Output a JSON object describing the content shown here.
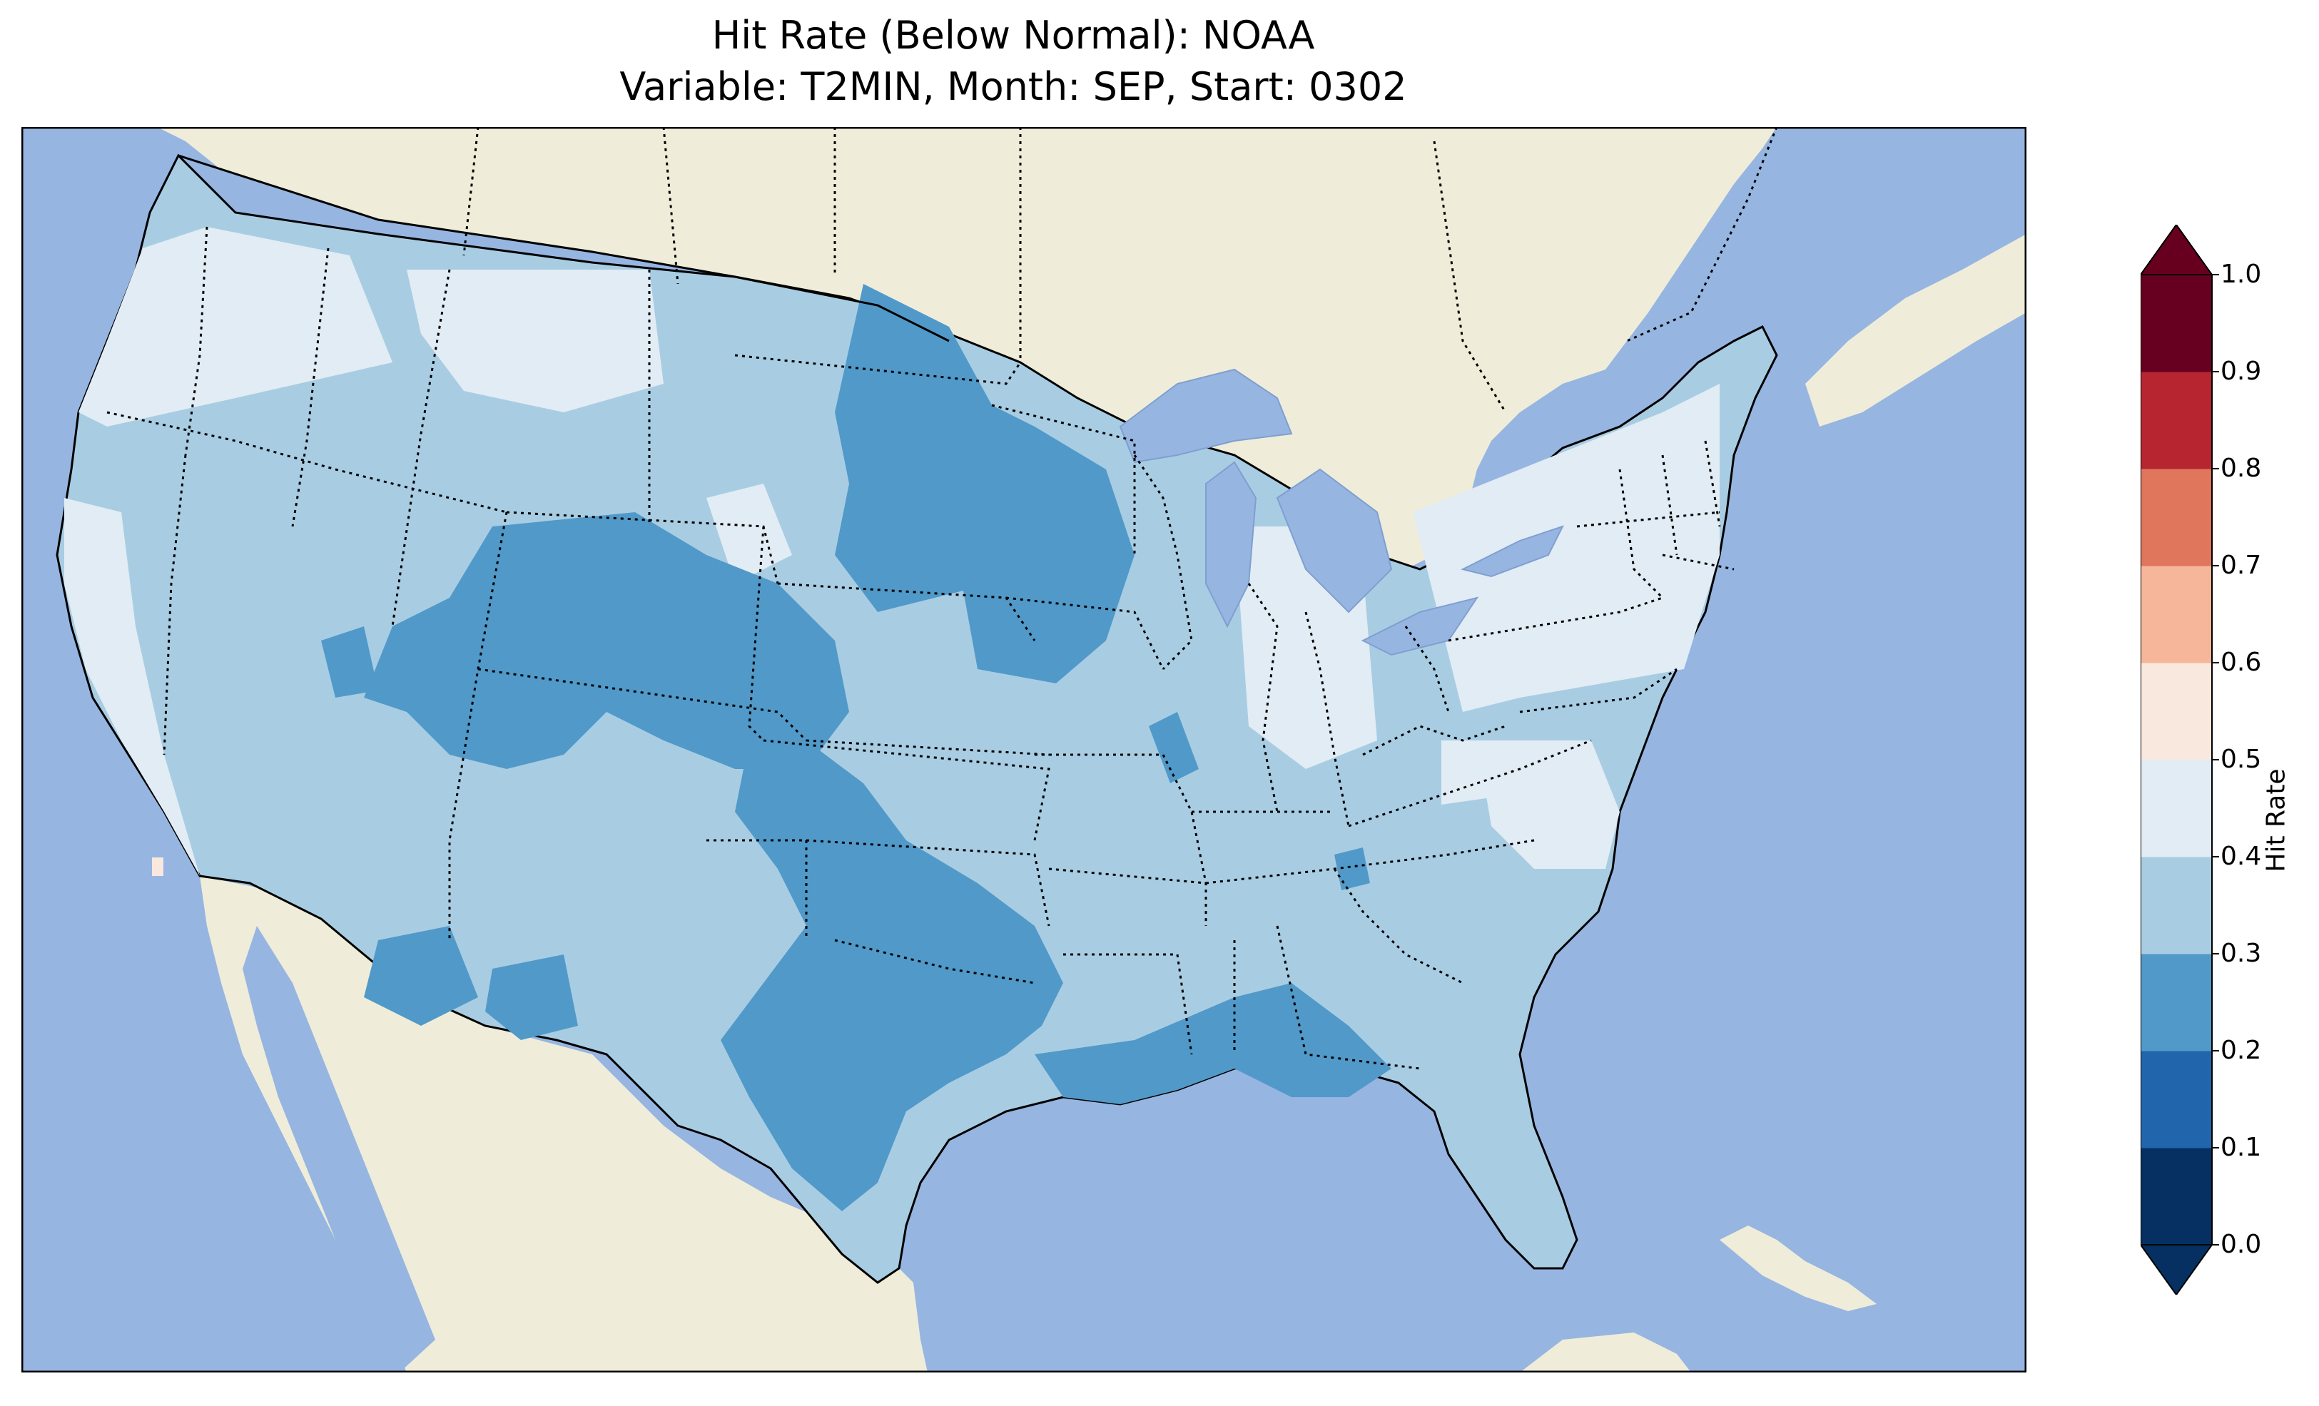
{
  "title": {
    "line1": "Hit Rate (Below Normal): NOAA",
    "line2": "Variable: T2MIN, Month: SEP, Start: 0302"
  },
  "colors": {
    "ocean": "#97b5e1",
    "land": "#efedd9",
    "scale": [
      "#053061",
      "#2166ac",
      "#4393c3",
      "#92c5de",
      "#d1e5f0",
      "#f7f7f7",
      "#fddbc7",
      "#f4a582",
      "#d6604d",
      "#b2182b",
      "#67001f"
    ],
    "under": "#053061",
    "over": "#67001f"
  },
  "colorbar": {
    "label": "Hit Rate",
    "ticks": [
      "0.0",
      "0.1",
      "0.2",
      "0.3",
      "0.4",
      "0.5",
      "0.6",
      "0.7",
      "0.8",
      "0.9",
      "1.0"
    ],
    "bins": [
      {
        "range": "0.0-0.1",
        "color": "#053061"
      },
      {
        "range": "0.1-0.2",
        "color": "#2166ac"
      },
      {
        "range": "0.2-0.3",
        "color": "#5199c9"
      },
      {
        "range": "0.3-0.4",
        "color": "#a8cde3"
      },
      {
        "range": "0.4-0.5",
        "color": "#e2ecf4"
      },
      {
        "range": "0.5-0.6",
        "color": "#f8e8de"
      },
      {
        "range": "0.6-0.7",
        "color": "#f5b699"
      },
      {
        "range": "0.7-0.8",
        "color": "#e0765c"
      },
      {
        "range": "0.8-0.9",
        "color": "#b72531"
      },
      {
        "range": "0.9-1.0",
        "color": "#670020"
      }
    ]
  },
  "map_regions": [
    {
      "name": "Pacific Northwest",
      "bin": "0.4-0.5"
    },
    {
      "name": "California coast",
      "bin": "0.4-0.5"
    },
    {
      "name": "Great Basin",
      "bin": "0.3-0.4"
    },
    {
      "name": "Colorado / Utah",
      "bin": "0.2-0.3"
    },
    {
      "name": "Northern Plains",
      "bin": "0.2-0.3"
    },
    {
      "name": "Kansas / Oklahoma",
      "bin": "0.2-0.3"
    },
    {
      "name": "Texas",
      "bin": "0.2-0.3"
    },
    {
      "name": "Gulf Coast",
      "bin": "0.2-0.3"
    },
    {
      "name": "Southwest",
      "bin": "0.3-0.4"
    },
    {
      "name": "Midwest",
      "bin": "0.3-0.4"
    },
    {
      "name": "Ohio Valley",
      "bin": "0.4-0.5"
    },
    {
      "name": "Northeast",
      "bin": "0.4-0.5"
    },
    {
      "name": "Southeast / Florida",
      "bin": "0.3-0.4"
    },
    {
      "name": "Southern California point",
      "bin": "0.5-0.6"
    }
  ]
}
